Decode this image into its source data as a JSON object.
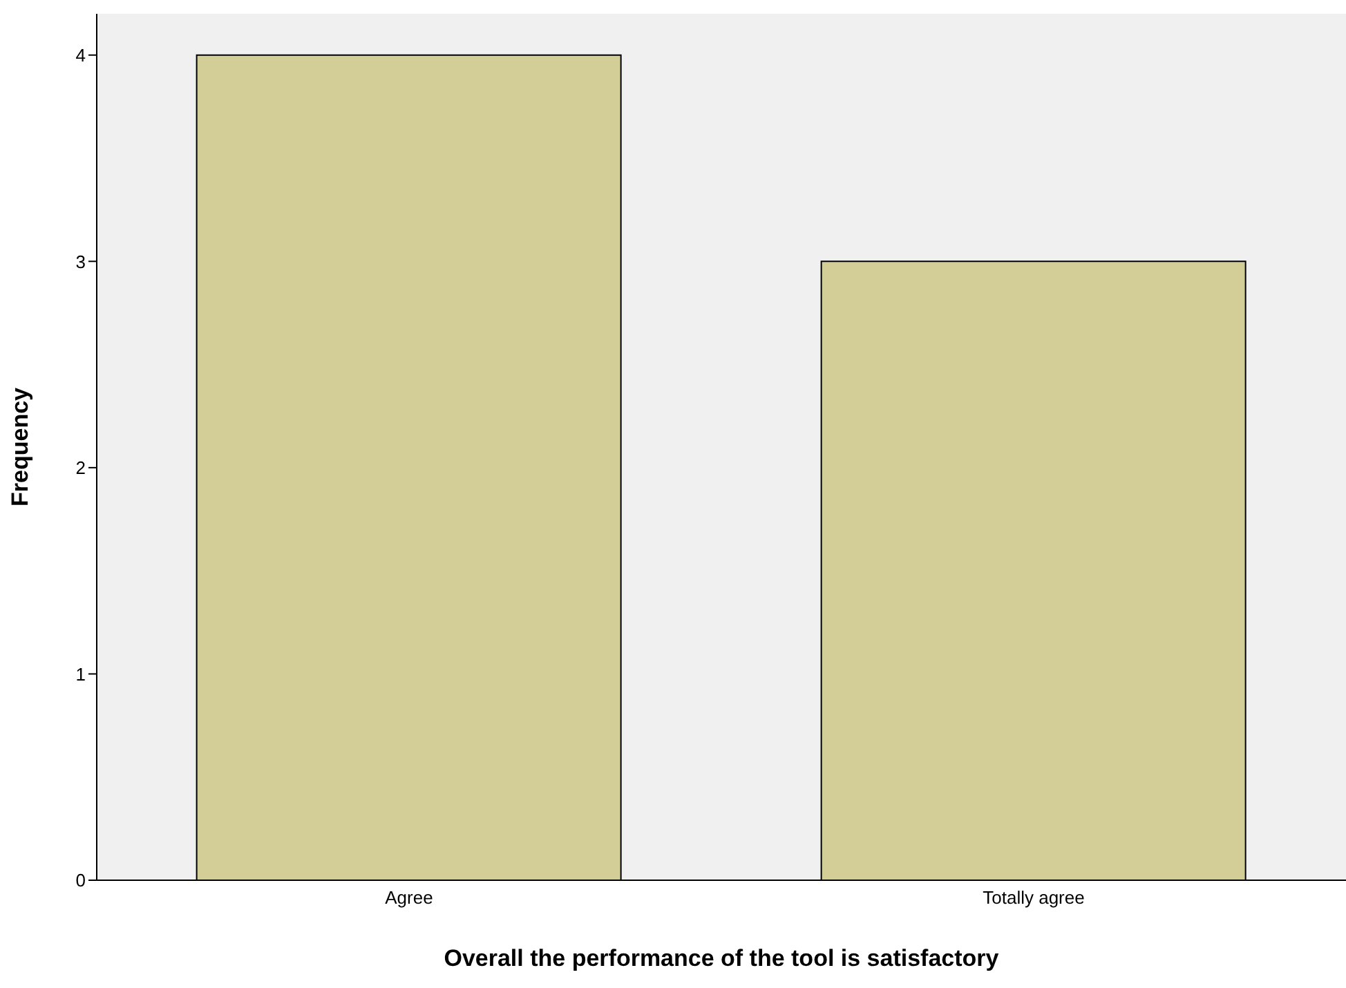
{
  "chart_data": {
    "type": "bar",
    "xlabel": "Overall the performance of the tool is satisfactory",
    "ylabel": "Frequency",
    "categories": [
      "Agree",
      "Totally agree"
    ],
    "values": [
      4,
      3
    ],
    "color": "#d3cd97",
    "ylim": [
      0,
      4.2
    ],
    "yticks": [
      0,
      1,
      2,
      3,
      4
    ],
    "grid": false,
    "legend": false
  }
}
